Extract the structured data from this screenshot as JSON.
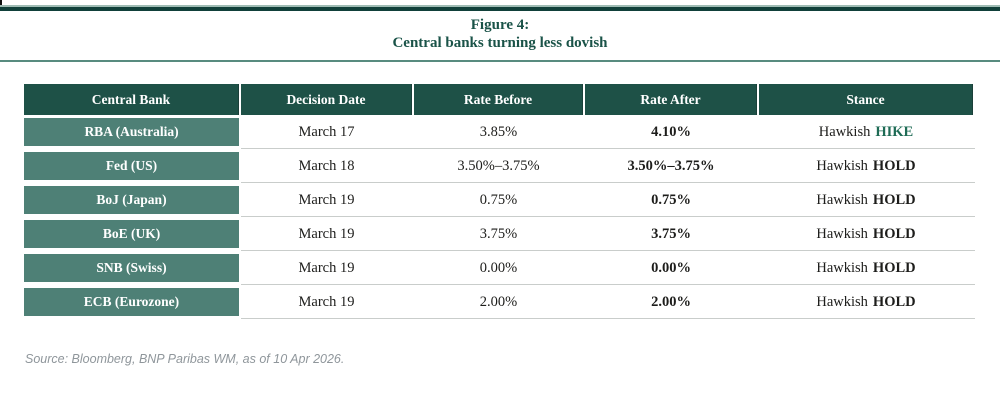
{
  "page": {
    "title_line1": "Figure 4:",
    "title_line2": "Central banks turning less dovish",
    "source": "Source: Bloomberg, BNP Paribas WM, as of 10 Apr 2026."
  },
  "colors": {
    "header_green": "#1e5147",
    "row_green": "#4e8076",
    "title_green": "#1a5348",
    "hike_green": "#1e6b55",
    "hold_dark": "#1d1d1b",
    "separator_gray": "#c9cdcb",
    "source_gray": "#8f969b",
    "top_rule_dark": "#11403a",
    "top_rule_light": "#9fbcb4"
  },
  "table": {
    "columns": [
      "Central Bank",
      "Decision Date",
      "Rate Before",
      "Rate After",
      "Stance"
    ],
    "rows": [
      {
        "bank": "RBA (Australia)",
        "date": "March 17",
        "rate_before": "3.85%",
        "rate_after": "4.10%",
        "stance_prefix": "Hawkish",
        "stance_action": "HIKE",
        "action_style": "green"
      },
      {
        "bank": "Fed (US)",
        "date": "March 18",
        "rate_before": "3.50%–3.75%",
        "rate_after": "3.50%–3.75%",
        "stance_prefix": "Hawkish",
        "stance_action": "HOLD",
        "action_style": "dark"
      },
      {
        "bank": "BoJ (Japan)",
        "date": "March 19",
        "rate_before": "0.75%",
        "rate_after": "0.75%",
        "stance_prefix": "Hawkish",
        "stance_action": "HOLD",
        "action_style": "dark"
      },
      {
        "bank": "BoE (UK)",
        "date": "March 19",
        "rate_before": "3.75%",
        "rate_after": "3.75%",
        "stance_prefix": "Hawkish",
        "stance_action": "HOLD",
        "action_style": "dark"
      },
      {
        "bank": "SNB (Swiss)",
        "date": "March 19",
        "rate_before": "0.00%",
        "rate_after": "0.00%",
        "stance_prefix": "Hawkish",
        "stance_action": "HOLD",
        "action_style": "dark"
      },
      {
        "bank": "ECB (Eurozone)",
        "date": "March 19",
        "rate_before": "2.00%",
        "rate_after": "2.00%",
        "stance_prefix": "Hawkish",
        "stance_action": "HOLD",
        "action_style": "dark"
      }
    ]
  }
}
